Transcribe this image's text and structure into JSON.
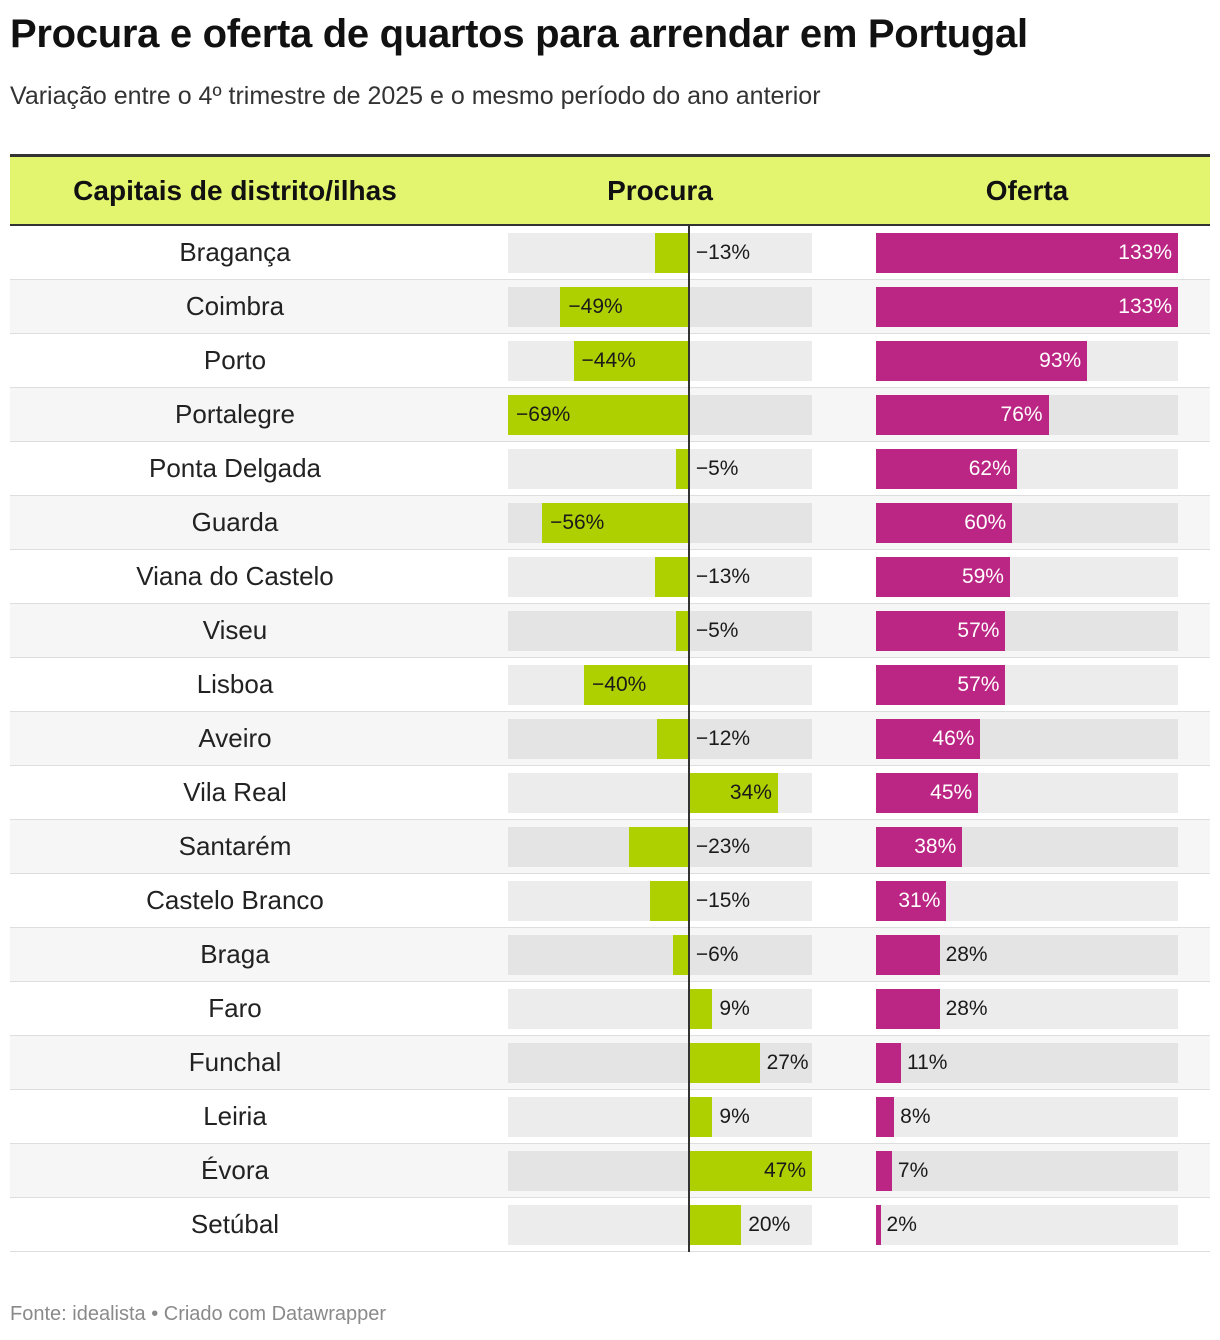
{
  "title": "Procura e oferta de quartos para arrendar em Portugal",
  "subtitle": "Variação entre o 4º trimestre de 2025 e o mesmo período do ano anterior",
  "headers": {
    "city": "Capitais de distrito/ilhas",
    "procura": "Procura",
    "oferta": "Oferta"
  },
  "colors": {
    "procura": "#afd000",
    "oferta": "#bb2584",
    "header_bg": "#e3f56f"
  },
  "footer": "Fonte: idealista • Criado com Datawrapper",
  "chart_data": {
    "type": "bar",
    "title": "Procura e oferta de quartos para arrendar em Portugal",
    "subtitle": "Variação entre o 4º trimestre de 2025 e o mesmo período do ano anterior",
    "categories": [
      "Bragança",
      "Coimbra",
      "Porto",
      "Portalegre",
      "Ponta Delgada",
      "Guarda",
      "Viana do Castelo",
      "Viseu",
      "Lisboa",
      "Aveiro",
      "Vila Real",
      "Santarém",
      "Castelo Branco",
      "Braga",
      "Faro",
      "Funchal",
      "Leiria",
      "Évora",
      "Setúbal"
    ],
    "series": [
      {
        "name": "Procura",
        "values": [
          -13,
          -49,
          -44,
          -69,
          -5,
          -56,
          -13,
          -5,
          -40,
          -12,
          34,
          -23,
          -15,
          -6,
          9,
          27,
          9,
          47,
          20
        ],
        "labels": [
          "−13%",
          "−49%",
          "−44%",
          "−69%",
          "−5%",
          "−56%",
          "−13%",
          "−5%",
          "−40%",
          "−12%",
          "34%",
          "−23%",
          "−15%",
          "−6%",
          "9%",
          "27%",
          "9%",
          "47%",
          "20%"
        ],
        "range": [
          -69,
          47
        ]
      },
      {
        "name": "Oferta",
        "values": [
          133,
          133,
          93,
          76,
          62,
          60,
          59,
          57,
          57,
          46,
          45,
          38,
          31,
          28,
          28,
          11,
          8,
          7,
          2
        ],
        "labels": [
          "133%",
          "133%",
          "93%",
          "76%",
          "62%",
          "60%",
          "59%",
          "57%",
          "57%",
          "46%",
          "45%",
          "38%",
          "31%",
          "28%",
          "28%",
          "11%",
          "8%",
          "7%",
          "2%"
        ],
        "range": [
          0,
          133
        ]
      }
    ],
    "units": "%"
  }
}
